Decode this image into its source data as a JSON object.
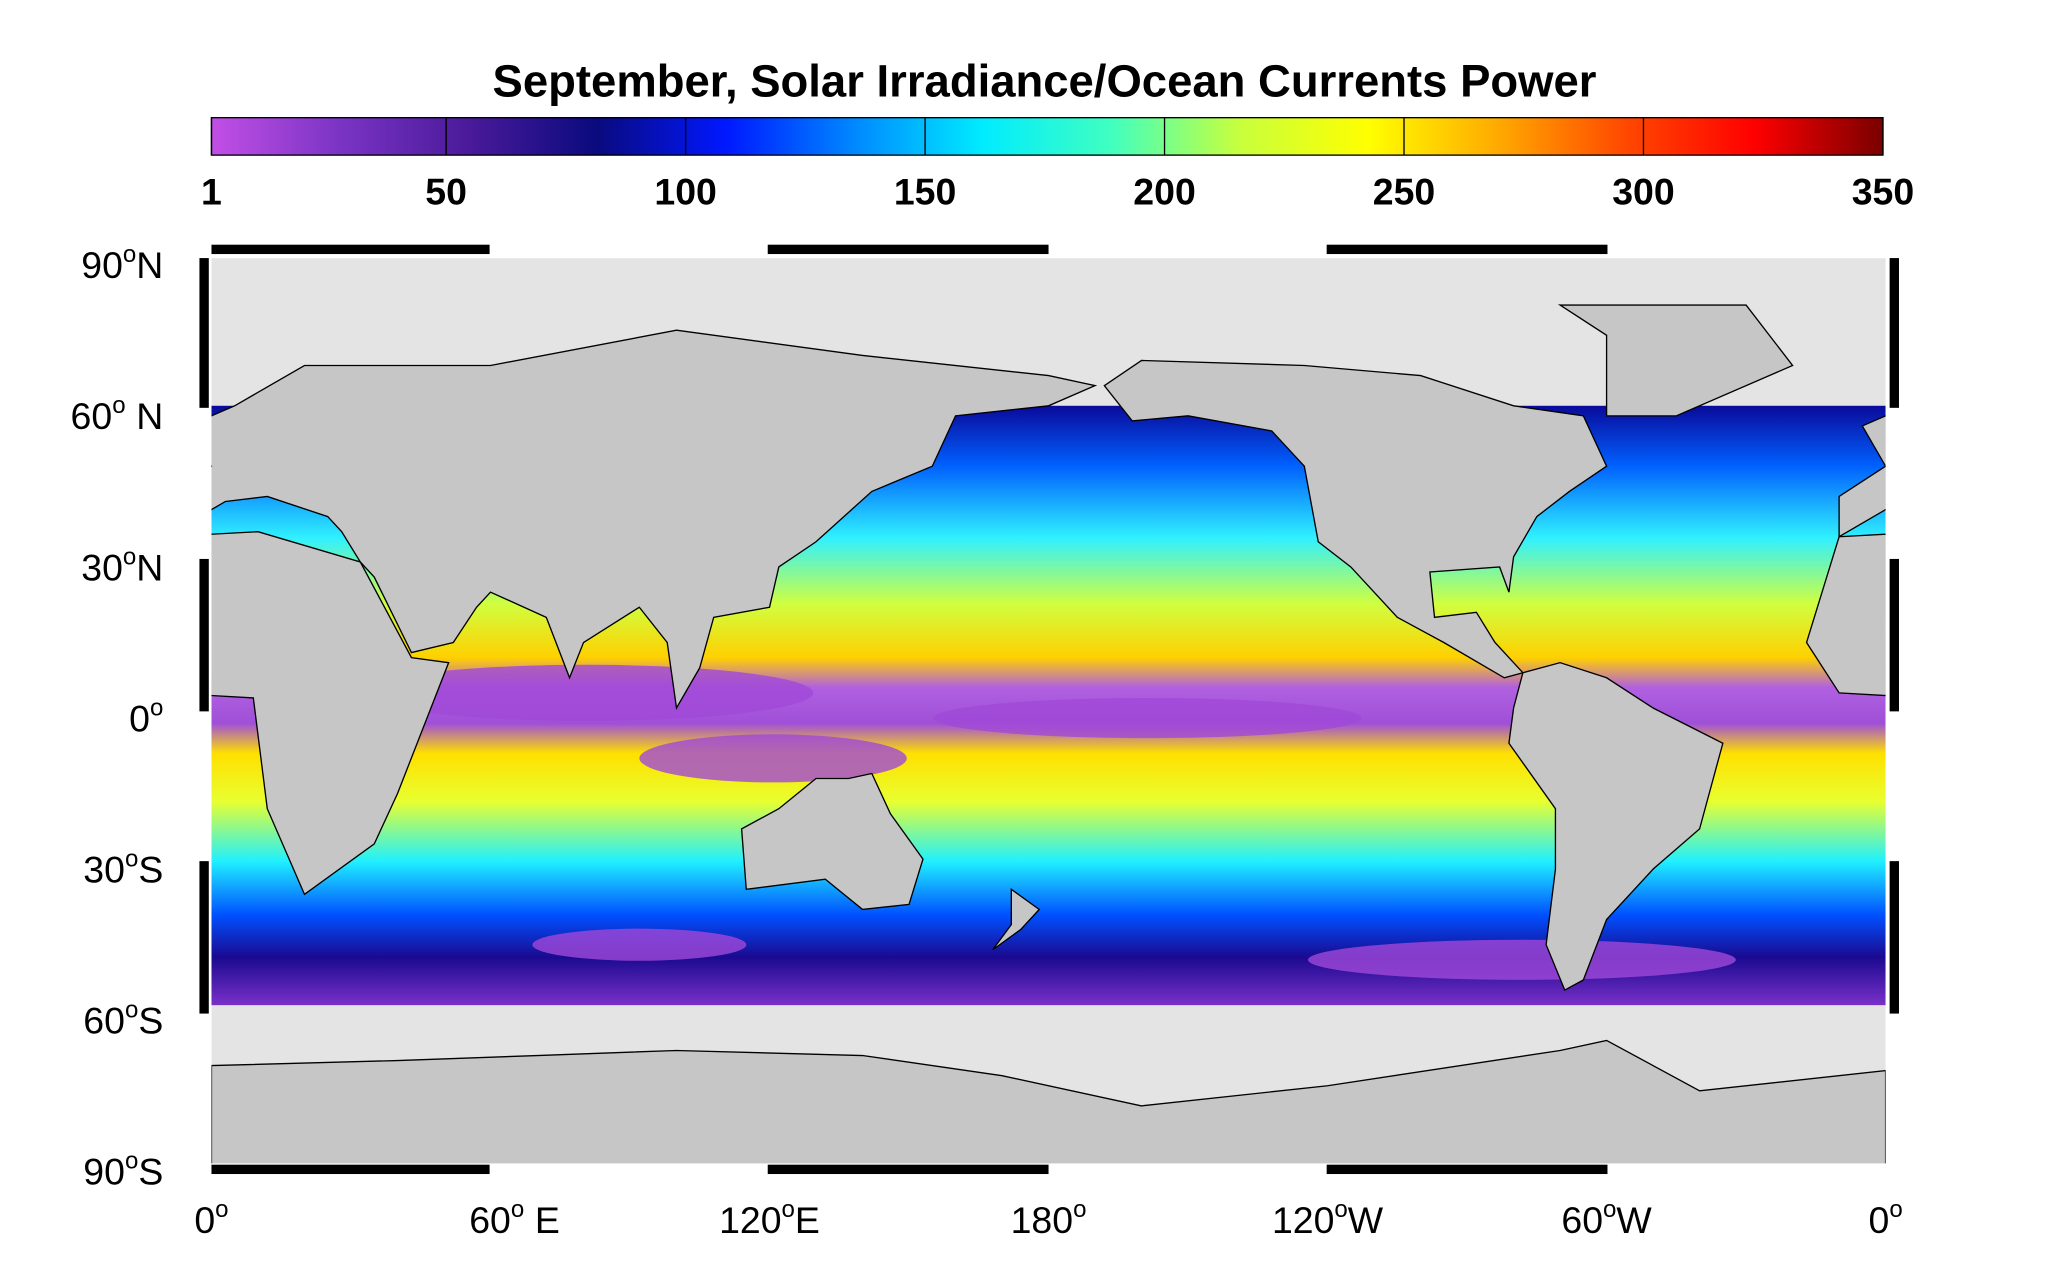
{
  "title": "September, Solar Irradiance/Ocean Currents Power",
  "colorbar": {
    "range": [
      1,
      350
    ],
    "ticks": [
      1,
      50,
      100,
      150,
      200,
      250,
      300,
      350
    ],
    "colormap": [
      "#c24fe6",
      "#7a34c4",
      "#4a1a9a",
      "#0a0a7e",
      "#0018ff",
      "#0088ff",
      "#00ecff",
      "#40ffc0",
      "#c8ff3c",
      "#ffff00",
      "#ffaa00",
      "#ff4800",
      "#ff0000",
      "#7a0000"
    ]
  },
  "lat_labels": [
    {
      "number": "90",
      "degree": "o",
      "hemisphere": "N"
    },
    {
      "number": "60",
      "degree": "o",
      "hemisphere": "N"
    },
    {
      "number": "30",
      "degree": "o",
      "hemisphere": "N"
    },
    {
      "number": "0",
      "degree": "o"
    },
    {
      "number": "30",
      "degree": "o",
      "hemisphere": "S"
    },
    {
      "number": "60",
      "degree": "o",
      "hemisphere": "S"
    },
    {
      "number": "90",
      "degree": "o",
      "hemisphere": "S"
    }
  ],
  "lon_labels": [
    {
      "number": "0",
      "degree": "o"
    },
    {
      "number": "60",
      "degree": "o",
      "hemisphere": "E"
    },
    {
      "number": "120",
      "degree": "o",
      "hemisphere": "E"
    },
    {
      "number": "180",
      "degree": "o"
    },
    {
      "number": "120",
      "degree": "o",
      "hemisphere": "W"
    },
    {
      "number": "60",
      "degree": "o",
      "hemisphere": "W"
    },
    {
      "number": "0",
      "degree": "o"
    }
  ]
}
